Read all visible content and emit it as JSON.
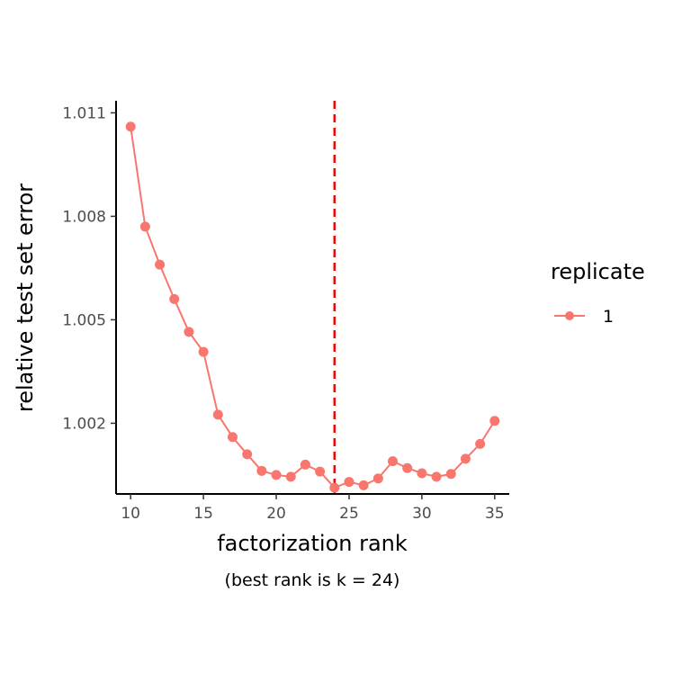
{
  "chart_data": {
    "type": "line",
    "xlabel": "factorization rank",
    "ylabel": "relative test set error",
    "caption": "(best rank is k = 24)",
    "xlim": [
      9,
      36
    ],
    "ylim": [
      0.99995,
      1.01135
    ],
    "x_ticks": [
      10,
      15,
      20,
      25,
      30,
      35
    ],
    "y_ticks": [
      1.002,
      1.005,
      1.008,
      1.011
    ],
    "y_tick_labels": [
      "1.002",
      "1.005",
      "1.008",
      "1.011"
    ],
    "grid": false,
    "reference_line": {
      "x": 24,
      "style": "dashed",
      "color": "#ff0000"
    },
    "legend": {
      "title": "replicate",
      "placement": "right"
    },
    "series": [
      {
        "name": "1",
        "color": "#f8766d",
        "x": [
          10,
          11,
          12,
          13,
          14,
          15,
          16,
          17,
          18,
          19,
          20,
          21,
          22,
          23,
          24,
          25,
          26,
          27,
          28,
          29,
          30,
          31,
          32,
          33,
          34,
          35
        ],
        "y": [
          1.0106,
          1.0077,
          1.0066,
          1.0056,
          1.00465,
          1.00407,
          1.00225,
          1.0016,
          1.0011,
          1.00062,
          1.0005,
          1.00045,
          1.0008,
          1.0006,
          1.00013,
          1.0003,
          1.0002,
          1.0004,
          1.0009,
          1.0007,
          1.00055,
          1.00045,
          1.00053,
          1.00097,
          1.0014,
          1.00207
        ]
      }
    ]
  }
}
